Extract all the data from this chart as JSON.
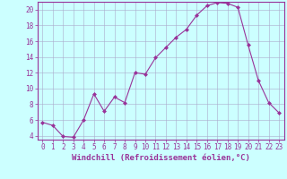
{
  "x": [
    0,
    1,
    2,
    3,
    4,
    5,
    6,
    7,
    8,
    9,
    10,
    11,
    12,
    13,
    14,
    15,
    16,
    17,
    18,
    19,
    20,
    21,
    22,
    23
  ],
  "y": [
    5.7,
    5.3,
    3.9,
    3.8,
    6.0,
    9.3,
    7.1,
    8.9,
    8.2,
    12.0,
    11.8,
    13.9,
    15.2,
    16.5,
    17.5,
    19.3,
    20.5,
    20.9,
    20.8,
    20.3,
    15.5,
    11.0,
    8.2,
    6.9
  ],
  "line_color": "#993399",
  "marker": "D",
  "marker_size": 2,
  "bg_color": "#ccffff",
  "grid_color": "#aaaacc",
  "xlabel": "Windchill (Refroidissement éolien,°C)",
  "xlim": [
    -0.5,
    23.5
  ],
  "ylim": [
    3.5,
    21.0
  ],
  "yticks": [
    4,
    6,
    8,
    10,
    12,
    14,
    16,
    18,
    20
  ],
  "xticks": [
    0,
    1,
    2,
    3,
    4,
    5,
    6,
    7,
    8,
    9,
    10,
    11,
    12,
    13,
    14,
    15,
    16,
    17,
    18,
    19,
    20,
    21,
    22,
    23
  ],
  "tick_fontsize": 5.5,
  "xlabel_fontsize": 6.5,
  "label_color": "#993399",
  "spine_color": "#993399"
}
